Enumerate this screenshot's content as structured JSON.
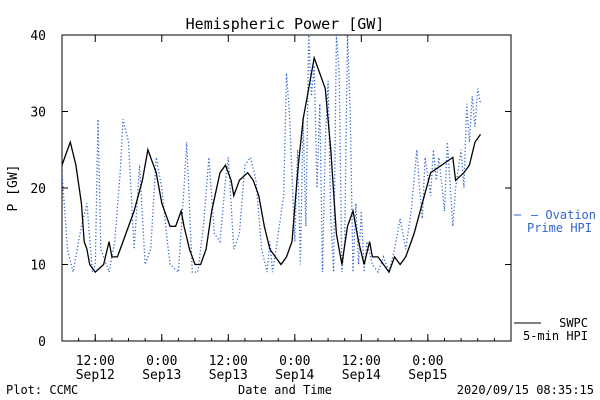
{
  "chart_data": {
    "type": "line",
    "title": "Hemispheric Power [GW]",
    "ylabel": "P [GW]",
    "xlabel": "Date and Time",
    "ylim": [
      0,
      40
    ],
    "yticks": [
      0,
      10,
      20,
      30,
      40
    ],
    "xlim": [
      "2020-09-12 06:00",
      "2020-09-15 15:00"
    ],
    "xticks": [
      {
        "t": "2020-09-12 12:00",
        "time": "12:00",
        "date": "Sep12"
      },
      {
        "t": "2020-09-13 00:00",
        "time": "0:00",
        "date": "Sep13"
      },
      {
        "t": "2020-09-13 12:00",
        "time": "12:00",
        "date": "Sep13"
      },
      {
        "t": "2020-09-14 00:00",
        "time": "0:00",
        "date": "Sep14"
      },
      {
        "t": "2020-09-14 12:00",
        "time": "12:00",
        "date": "Sep14"
      },
      {
        "t": "2020-09-15 00:00",
        "time": "0:00",
        "date": "Sep15"
      }
    ],
    "series": [
      {
        "name": "SWPC 5-min HPI",
        "color": "#000000",
        "style": "solid",
        "legend_lines": [
          "SWPC",
          "5-min HPI"
        ],
        "points": [
          [
            "2020-09-12 06:00",
            23
          ],
          [
            "2020-09-12 07:00",
            25
          ],
          [
            "2020-09-12 07:30",
            26
          ],
          [
            "2020-09-12 08:30",
            23
          ],
          [
            "2020-09-12 09:30",
            18
          ],
          [
            "2020-09-12 10:00",
            13
          ],
          [
            "2020-09-12 10:30",
            12
          ],
          [
            "2020-09-12 11:00",
            10
          ],
          [
            "2020-09-12 12:00",
            9
          ],
          [
            "2020-09-12 13:30",
            10
          ],
          [
            "2020-09-12 14:30",
            13
          ],
          [
            "2020-09-12 15:00",
            11
          ],
          [
            "2020-09-12 16:00",
            11
          ],
          [
            "2020-09-12 17:00",
            13
          ],
          [
            "2020-09-12 19:00",
            17
          ],
          [
            "2020-09-12 20:30",
            21
          ],
          [
            "2020-09-12 21:30",
            25
          ],
          [
            "2020-09-12 23:00",
            22
          ],
          [
            "2020-09-13 00:00",
            18
          ],
          [
            "2020-09-13 01:30",
            15
          ],
          [
            "2020-09-13 02:30",
            15
          ],
          [
            "2020-09-13 03:30",
            17
          ],
          [
            "2020-09-13 04:00",
            15
          ],
          [
            "2020-09-13 05:00",
            12
          ],
          [
            "2020-09-13 06:00",
            10
          ],
          [
            "2020-09-13 07:00",
            10
          ],
          [
            "2020-09-13 08:00",
            12
          ],
          [
            "2020-09-13 09:00",
            17
          ],
          [
            "2020-09-13 10:30",
            22
          ],
          [
            "2020-09-13 11:30",
            23
          ],
          [
            "2020-09-13 12:30",
            21
          ],
          [
            "2020-09-13 13:00",
            19
          ],
          [
            "2020-09-13 14:00",
            21
          ],
          [
            "2020-09-13 15:30",
            22
          ],
          [
            "2020-09-13 16:30",
            21
          ],
          [
            "2020-09-13 17:30",
            19
          ],
          [
            "2020-09-13 18:30",
            15
          ],
          [
            "2020-09-13 19:30",
            12
          ],
          [
            "2020-09-13 20:30",
            11
          ],
          [
            "2020-09-13 21:30",
            10
          ],
          [
            "2020-09-13 22:30",
            11
          ],
          [
            "2020-09-13 23:30",
            13
          ],
          [
            "2020-09-14 00:30",
            22
          ],
          [
            "2020-09-14 01:30",
            29
          ],
          [
            "2020-09-14 02:30",
            33
          ],
          [
            "2020-09-14 03:30",
            37
          ],
          [
            "2020-09-14 04:30",
            35
          ],
          [
            "2020-09-14 05:30",
            33
          ],
          [
            "2020-09-14 06:30",
            25
          ],
          [
            "2020-09-14 07:30",
            14
          ],
          [
            "2020-09-14 08:30",
            10
          ],
          [
            "2020-09-14 09:30",
            15
          ],
          [
            "2020-09-14 10:30",
            17
          ],
          [
            "2020-09-14 11:30",
            13
          ],
          [
            "2020-09-14 12:30",
            10
          ],
          [
            "2020-09-14 13:30",
            13
          ],
          [
            "2020-09-14 14:00",
            11
          ],
          [
            "2020-09-14 15:00",
            11
          ],
          [
            "2020-09-14 16:00",
            10
          ],
          [
            "2020-09-14 17:00",
            9
          ],
          [
            "2020-09-14 18:00",
            11
          ],
          [
            "2020-09-14 19:00",
            10
          ],
          [
            "2020-09-14 20:00",
            11
          ],
          [
            "2020-09-14 21:30",
            14
          ],
          [
            "2020-09-14 23:00",
            18
          ],
          [
            "2020-09-15 00:30",
            22
          ],
          [
            "2020-09-15 02:30",
            23
          ],
          [
            "2020-09-15 04:30",
            24
          ],
          [
            "2020-09-15 05:00",
            21
          ],
          [
            "2020-09-15 06:30",
            22
          ],
          [
            "2020-09-15 07:30",
            23
          ],
          [
            "2020-09-15 08:30",
            26
          ],
          [
            "2020-09-15 09:30",
            27
          ]
        ]
      },
      {
        "name": "Ovation Prime HPI",
        "color": "#3366cc",
        "style": "dotted",
        "legend_lines": [
          "– Ovation",
          "Prime HPI"
        ],
        "points": [
          [
            "2020-09-12 06:00",
            22
          ],
          [
            "2020-09-12 07:00",
            12
          ],
          [
            "2020-09-12 08:00",
            9
          ],
          [
            "2020-09-12 09:30",
            15
          ],
          [
            "2020-09-12 10:30",
            18
          ],
          [
            "2020-09-12 11:30",
            9
          ],
          [
            "2020-09-12 12:00",
            10
          ],
          [
            "2020-09-12 12:30",
            29
          ],
          [
            "2020-09-12 13:00",
            12
          ],
          [
            "2020-09-12 14:30",
            9
          ],
          [
            "2020-09-12 15:30",
            13
          ],
          [
            "2020-09-12 16:30",
            22
          ],
          [
            "2020-09-12 17:00",
            29
          ],
          [
            "2020-09-12 18:00",
            26
          ],
          [
            "2020-09-12 19:00",
            12
          ],
          [
            "2020-09-12 20:00",
            23
          ],
          [
            "2020-09-12 21:00",
            10
          ],
          [
            "2020-09-12 22:00",
            12
          ],
          [
            "2020-09-12 23:00",
            24
          ],
          [
            "2020-09-13 00:00",
            20
          ],
          [
            "2020-09-13 01:00",
            13
          ],
          [
            "2020-09-13 01:30",
            10
          ],
          [
            "2020-09-13 03:00",
            9
          ],
          [
            "2020-09-13 04:00",
            20
          ],
          [
            "2020-09-13 04:30",
            26
          ],
          [
            "2020-09-13 05:30",
            9
          ],
          [
            "2020-09-13 06:30",
            9
          ],
          [
            "2020-09-13 07:30",
            15
          ],
          [
            "2020-09-13 08:30",
            24
          ],
          [
            "2020-09-13 09:30",
            14
          ],
          [
            "2020-09-13 10:30",
            13
          ],
          [
            "2020-09-13 11:30",
            21
          ],
          [
            "2020-09-13 12:00",
            24
          ],
          [
            "2020-09-13 13:00",
            12
          ],
          [
            "2020-09-13 14:00",
            14
          ],
          [
            "2020-09-13 15:00",
            23
          ],
          [
            "2020-09-13 16:00",
            24
          ],
          [
            "2020-09-13 17:00",
            21
          ],
          [
            "2020-09-13 18:00",
            12
          ],
          [
            "2020-09-13 19:00",
            9
          ],
          [
            "2020-09-13 19:30",
            13
          ],
          [
            "2020-09-13 20:00",
            9
          ],
          [
            "2020-09-13 21:00",
            14
          ],
          [
            "2020-09-13 22:00",
            19
          ],
          [
            "2020-09-13 22:30",
            35
          ],
          [
            "2020-09-13 23:00",
            30
          ],
          [
            "2020-09-14 00:00",
            13
          ],
          [
            "2020-09-14 00:30",
            25
          ],
          [
            "2020-09-14 01:00",
            10
          ],
          [
            "2020-09-14 01:30",
            29
          ],
          [
            "2020-09-14 02:00",
            15
          ],
          [
            "2020-09-14 02:30",
            40
          ],
          [
            "2020-09-14 03:00",
            32
          ],
          [
            "2020-09-14 03:30",
            36
          ],
          [
            "2020-09-14 04:00",
            20
          ],
          [
            "2020-09-14 04:30",
            31
          ],
          [
            "2020-09-14 05:00",
            9
          ],
          [
            "2020-09-14 05:30",
            26
          ],
          [
            "2020-09-14 06:00",
            34
          ],
          [
            "2020-09-14 06:30",
            16
          ],
          [
            "2020-09-14 07:00",
            9
          ],
          [
            "2020-09-14 07:30",
            40
          ],
          [
            "2020-09-14 08:00",
            35
          ],
          [
            "2020-09-14 08:30",
            9
          ],
          [
            "2020-09-14 09:00",
            13
          ],
          [
            "2020-09-14 09:30",
            40
          ],
          [
            "2020-09-14 10:00",
            30
          ],
          [
            "2020-09-14 10:30",
            9
          ],
          [
            "2020-09-14 11:00",
            18
          ],
          [
            "2020-09-14 11:30",
            10
          ],
          [
            "2020-09-14 12:00",
            17
          ],
          [
            "2020-09-14 12:30",
            9
          ],
          [
            "2020-09-14 13:00",
            13
          ],
          [
            "2020-09-14 14:00",
            10
          ],
          [
            "2020-09-14 15:00",
            9
          ],
          [
            "2020-09-14 16:00",
            11
          ],
          [
            "2020-09-14 17:00",
            9
          ],
          [
            "2020-09-14 18:00",
            12
          ],
          [
            "2020-09-14 19:00",
            16
          ],
          [
            "2020-09-14 20:00",
            12
          ],
          [
            "2020-09-14 21:00",
            17
          ],
          [
            "2020-09-14 22:00",
            25
          ],
          [
            "2020-09-14 22:30",
            20
          ],
          [
            "2020-09-14 23:00",
            16
          ],
          [
            "2020-09-14 23:30",
            24
          ],
          [
            "2020-09-15 00:30",
            19
          ],
          [
            "2020-09-15 01:00",
            25
          ],
          [
            "2020-09-15 01:30",
            21
          ],
          [
            "2020-09-15 02:00",
            24
          ],
          [
            "2020-09-15 03:00",
            17
          ],
          [
            "2020-09-15 03:30",
            26
          ],
          [
            "2020-09-15 04:30",
            15
          ],
          [
            "2020-09-15 05:00",
            20
          ],
          [
            "2020-09-15 06:00",
            25
          ],
          [
            "2020-09-15 06:30",
            20
          ],
          [
            "2020-09-15 07:00",
            31
          ],
          [
            "2020-09-15 07:30",
            26
          ],
          [
            "2020-09-15 08:00",
            32
          ],
          [
            "2020-09-15 08:30",
            28
          ],
          [
            "2020-09-15 09:00",
            33
          ],
          [
            "2020-09-15 09:30",
            31
          ]
        ]
      }
    ]
  },
  "footer": {
    "left": "Plot: CCMC",
    "right": "2020/09/15 08:35:15"
  }
}
